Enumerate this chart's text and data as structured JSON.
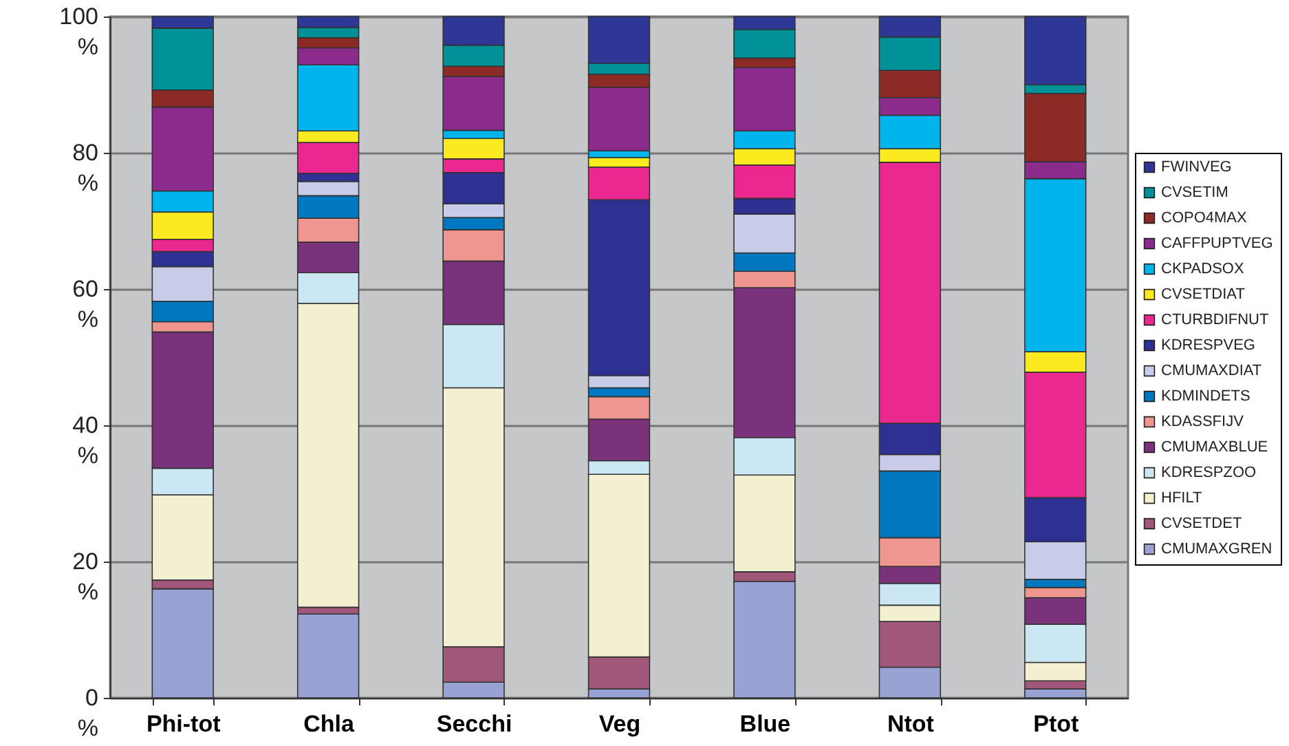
{
  "chart_data": {
    "type": "bar",
    "stacked": true,
    "categories": [
      "Phi-tot",
      "Chla",
      "Secchi",
      "Veg",
      "Blue",
      "Ntot",
      "Ptot"
    ],
    "series": [
      {
        "name": "CMUMAXGREN",
        "color": "#99a3d3",
        "values": [
          16.0,
          12.3,
          2.3,
          1.3,
          17.1,
          4.5,
          1.3
        ]
      },
      {
        "name": "CVSETDET",
        "color": "#a0577a",
        "values": [
          1.3,
          1.0,
          5.2,
          4.7,
          1.4,
          6.7,
          1.2
        ]
      },
      {
        "name": "HFILT",
        "color": "#f3f0d2",
        "values": [
          12.5,
          44.6,
          38.0,
          26.8,
          14.2,
          2.4,
          2.7
        ]
      },
      {
        "name": "KDRESPZOO",
        "color": "#cbe7f3",
        "values": [
          3.9,
          4.5,
          9.3,
          2.0,
          5.5,
          3.2,
          5.6
        ]
      },
      {
        "name": "CMUMAXBLUE",
        "color": "#7a327a",
        "values": [
          20.0,
          4.5,
          9.3,
          6.1,
          22.0,
          2.5,
          3.9
        ]
      },
      {
        "name": "KDASSFIJV",
        "color": "#ef9690",
        "values": [
          1.5,
          3.5,
          4.6,
          3.3,
          2.4,
          4.2,
          1.5
        ]
      },
      {
        "name": "KDMINDETS",
        "color": "#0078c0",
        "values": [
          3.0,
          3.3,
          1.8,
          1.3,
          2.7,
          9.8,
          1.2
        ]
      },
      {
        "name": "CMUMAXDIAT",
        "color": "#c8cce8",
        "values": [
          5.1,
          2.1,
          2.0,
          1.8,
          5.7,
          2.4,
          5.5
        ]
      },
      {
        "name": "KDRESPVEG",
        "color": "#2e3192",
        "values": [
          2.2,
          1.2,
          4.6,
          25.8,
          2.3,
          4.6,
          6.5
        ]
      },
      {
        "name": "CTURBDIFNUT",
        "color": "#ea2890",
        "values": [
          1.8,
          4.5,
          2.0,
          4.8,
          4.9,
          38.3,
          18.4
        ]
      },
      {
        "name": "CVSETDIAT",
        "color": "#fcea20",
        "values": [
          4.0,
          1.7,
          3.0,
          1.4,
          2.4,
          2.0,
          3.0
        ]
      },
      {
        "name": "CKPADSOX",
        "color": "#00b4ec",
        "values": [
          3.1,
          9.7,
          1.2,
          1.0,
          2.6,
          4.9,
          25.4
        ]
      },
      {
        "name": "CAFFPUPTVEG",
        "color": "#8b2b8b",
        "values": [
          12.3,
          2.5,
          7.9,
          9.3,
          9.3,
          2.6,
          2.5
        ]
      },
      {
        "name": "COPO4MAX",
        "color": "#8c2a26",
        "values": [
          2.5,
          1.5,
          1.5,
          1.9,
          1.4,
          4.0,
          10.0
        ]
      },
      {
        "name": "CVSETIM",
        "color": "#009097",
        "values": [
          9.1,
          1.5,
          3.1,
          1.6,
          4.2,
          4.9,
          1.3
        ]
      },
      {
        "name": "FWINVEG",
        "color": "#2e3796",
        "values": [
          1.7,
          1.6,
          4.2,
          6.9,
          1.9,
          3.0,
          10.0
        ]
      }
    ],
    "ylim": [
      0,
      100
    ],
    "yticks": [
      {
        "value": 0,
        "label": "0 %"
      },
      {
        "value": 20,
        "label": "20 %"
      },
      {
        "value": 40,
        "label": "40 %"
      },
      {
        "value": 60,
        "label": "60 %"
      },
      {
        "value": 80,
        "label": "80 %"
      },
      {
        "value": 100,
        "label": "100 %"
      }
    ],
    "grid": "y",
    "legend": "right"
  }
}
